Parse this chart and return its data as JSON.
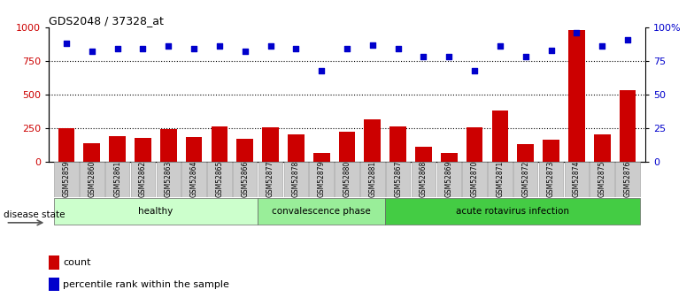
{
  "title": "GDS2048 / 37328_at",
  "samples": [
    "GSM52859",
    "GSM52860",
    "GSM52861",
    "GSM52862",
    "GSM52863",
    "GSM52864",
    "GSM52865",
    "GSM52866",
    "GSM52877",
    "GSM52878",
    "GSM52879",
    "GSM52880",
    "GSM52881",
    "GSM52867",
    "GSM52868",
    "GSM52869",
    "GSM52870",
    "GSM52871",
    "GSM52872",
    "GSM52873",
    "GSM52874",
    "GSM52875",
    "GSM52876"
  ],
  "counts": [
    248,
    138,
    190,
    175,
    245,
    185,
    265,
    173,
    255,
    205,
    65,
    220,
    315,
    260,
    110,
    65,
    255,
    380,
    130,
    165,
    980,
    200,
    530
  ],
  "percentiles": [
    88,
    82,
    84,
    84,
    86,
    84,
    86,
    82,
    86,
    84,
    68,
    84,
    87,
    84,
    78,
    78,
    68,
    86,
    78,
    83,
    96,
    86,
    91
  ],
  "groups": [
    {
      "label": "healthy",
      "start": 0,
      "end": 8,
      "color": "#ccffcc"
    },
    {
      "label": "convalescence phase",
      "start": 8,
      "end": 13,
      "color": "#99ee99"
    },
    {
      "label": "acute rotavirus infection",
      "start": 13,
      "end": 23,
      "color": "#44cc44"
    }
  ],
  "bar_color": "#cc0000",
  "dot_color": "#0000cc",
  "left_ylim": [
    0,
    1000
  ],
  "right_ylim": [
    0,
    100
  ],
  "left_yticks": [
    0,
    250,
    500,
    750,
    1000
  ],
  "right_yticks": [
    0,
    25,
    50,
    75,
    100
  ],
  "right_yticklabels": [
    "0",
    "25",
    "50",
    "75",
    "100%"
  ],
  "grid_values": [
    250,
    500,
    750
  ],
  "background_color": "#ffffff",
  "bar_width": 0.65,
  "tick_box_color": "#cccccc",
  "tick_box_edge": "#999999"
}
